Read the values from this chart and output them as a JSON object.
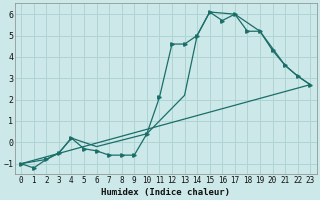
{
  "title": "",
  "xlabel": "Humidex (Indice chaleur)",
  "ylabel": "",
  "bg_color": "#cce8e8",
  "line_color": "#1a6e6a",
  "grid_color": "#b0d4d4",
  "xlim": [
    -0.5,
    23.5
  ],
  "ylim": [
    -1.5,
    6.5
  ],
  "xticks": [
    0,
    1,
    2,
    3,
    4,
    5,
    6,
    7,
    8,
    9,
    10,
    11,
    12,
    13,
    14,
    15,
    16,
    17,
    18,
    19,
    20,
    21,
    22,
    23
  ],
  "yticks": [
    -1,
    0,
    1,
    2,
    3,
    4,
    5,
    6
  ],
  "series": [
    {
      "x": [
        0,
        1,
        2,
        3,
        4,
        5,
        6,
        7,
        8,
        9,
        10,
        11,
        12,
        13,
        14,
        15,
        16,
        17,
        18,
        19,
        20,
        21,
        22,
        23
      ],
      "y": [
        -1.0,
        -1.2,
        -0.8,
        -0.5,
        0.2,
        -0.3,
        -0.4,
        -0.6,
        -0.6,
        -0.6,
        0.4,
        2.1,
        4.6,
        4.6,
        5.0,
        6.1,
        5.7,
        6.0,
        5.2,
        5.2,
        4.3,
        3.6,
        3.1,
        2.7
      ],
      "marker": true
    },
    {
      "x": [
        0,
        2,
        3,
        4,
        6,
        10,
        13,
        14,
        15,
        17,
        19,
        21,
        22,
        23
      ],
      "y": [
        -1.0,
        -0.8,
        -0.5,
        0.2,
        -0.2,
        0.4,
        2.2,
        5.0,
        6.1,
        6.0,
        5.2,
        3.6,
        3.1,
        2.7
      ],
      "marker": false
    },
    {
      "x": [
        0,
        23
      ],
      "y": [
        -1.0,
        2.7
      ],
      "marker": false
    }
  ]
}
